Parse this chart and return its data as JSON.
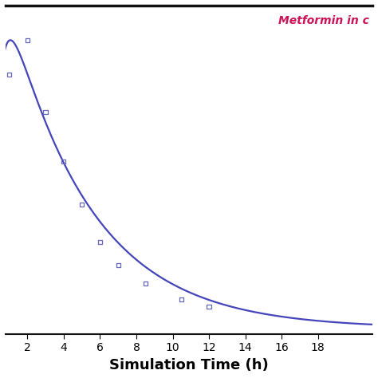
{
  "line_color": "#4444bb",
  "marker_color": "#6666bb",
  "annotation_text": "Metformin in c",
  "annotation_color": "#cc1155",
  "xlabel": "Simulation Time (h)",
  "xlabel_fontsize": 13,
  "xlabel_fontweight": "bold",
  "xlim": [
    0.8,
    21
  ],
  "xticks": [
    2,
    4,
    6,
    8,
    10,
    12,
    14,
    16,
    18
  ],
  "ylim": [
    -0.02,
    1.12
  ],
  "observed_x": [
    1.0,
    2.0,
    3.0,
    4.0,
    5.0,
    6.0,
    7.0,
    8.5,
    10.5,
    12.0
  ],
  "observed_y": [
    0.88,
    1.0,
    0.75,
    0.58,
    0.43,
    0.3,
    0.22,
    0.155,
    0.1,
    0.075
  ],
  "curve_ka": 2.5,
  "curve_ke": 0.22,
  "background_color": "#ffffff",
  "top_border_color": "#111111",
  "figsize": [
    4.74,
    4.74
  ],
  "dpi": 100
}
